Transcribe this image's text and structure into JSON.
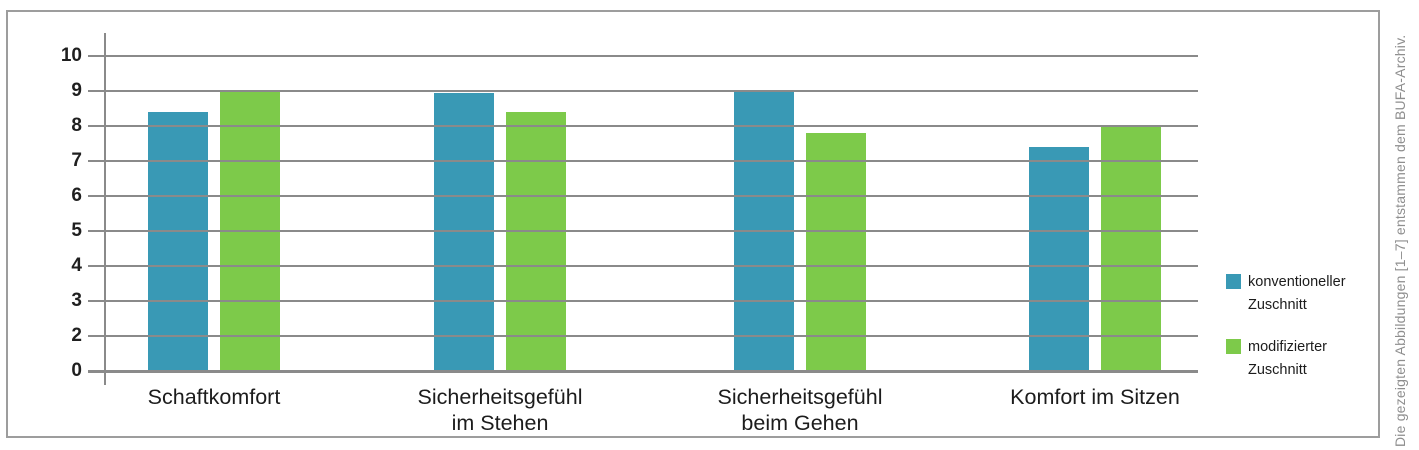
{
  "caption": "Die gezeigten Abbildungen [1–7] entstammen dem BUFA-Archiv.",
  "chart_data": {
    "type": "bar",
    "title": "",
    "categories": [
      "Schaftkomfort",
      "Sicherheitsgefühl im Stehen",
      "Sicherheitsgefühl beim Gehen",
      "Komfort im Sitzen"
    ],
    "category_label_lines": [
      [
        "Schaftkomfort"
      ],
      [
        "Sicherheitsgefühl",
        "im Stehen"
      ],
      [
        "Sicherheitsgefühl",
        "beim Gehen"
      ],
      [
        "Komfort im Sitzen"
      ]
    ],
    "series": [
      {
        "name": "konventioneller Zuschnitt",
        "label_lines": [
          "konventioneller",
          "Zuschnitt"
        ],
        "color": "#3999b5",
        "values": [
          8.4,
          8.95,
          9.0,
          7.4
        ]
      },
      {
        "name": "modifizierter Zuschnitt",
        "label_lines": [
          "modifizierter",
          "Zuschnitt"
        ],
        "color": "#7dca4a",
        "values": [
          9.0,
          8.4,
          7.8,
          8.0
        ]
      }
    ],
    "y_ticks": [
      "10",
      "9",
      "8",
      "7",
      "6",
      "5",
      "4",
      "3",
      "2",
      "0"
    ],
    "ylim": [
      0,
      10
    ],
    "grid": true,
    "legend_position": "right"
  }
}
